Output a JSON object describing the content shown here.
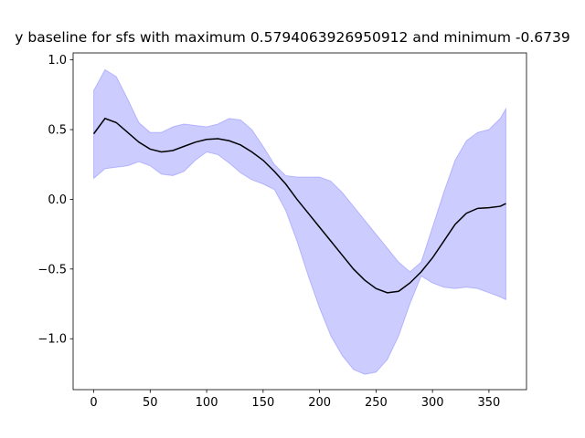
{
  "chart_data": {
    "type": "line",
    "title": "y baseline for sfs with maximum 0.5794063926950912 and minimum -0.6739",
    "x": [
      0,
      10,
      20,
      30,
      40,
      50,
      60,
      70,
      80,
      90,
      100,
      110,
      120,
      130,
      140,
      150,
      160,
      170,
      180,
      190,
      200,
      210,
      220,
      230,
      240,
      250,
      260,
      270,
      280,
      290,
      300,
      310,
      320,
      330,
      340,
      350,
      360,
      365
    ],
    "series": [
      {
        "color": "#000000",
        "values": [
          0.47,
          0.58,
          0.55,
          0.48,
          0.41,
          0.36,
          0.34,
          0.35,
          0.38,
          0.41,
          0.43,
          0.435,
          0.42,
          0.39,
          0.34,
          0.28,
          0.2,
          0.11,
          0.0,
          -0.1,
          -0.2,
          -0.3,
          -0.4,
          -0.5,
          -0.58,
          -0.64,
          -0.67,
          -0.66,
          -0.6,
          -0.52,
          -0.42,
          -0.3,
          -0.18,
          -0.1,
          -0.065,
          -0.06,
          -0.05,
          -0.03
        ]
      }
    ],
    "band": {
      "color": "#0000ff",
      "upper": [
        0.78,
        0.93,
        0.88,
        0.72,
        0.55,
        0.48,
        0.48,
        0.52,
        0.54,
        0.53,
        0.52,
        0.54,
        0.58,
        0.57,
        0.5,
        0.38,
        0.25,
        0.17,
        0.16,
        0.16,
        0.16,
        0.13,
        0.05,
        -0.05,
        -0.15,
        -0.25,
        -0.35,
        -0.45,
        -0.52,
        -0.45,
        -0.2,
        0.05,
        0.28,
        0.42,
        0.48,
        0.5,
        0.58,
        0.65
      ],
      "lower": [
        0.15,
        0.22,
        0.23,
        0.24,
        0.27,
        0.24,
        0.18,
        0.17,
        0.2,
        0.28,
        0.34,
        0.32,
        0.26,
        0.19,
        0.14,
        0.11,
        0.07,
        -0.08,
        -0.3,
        -0.55,
        -0.78,
        -0.98,
        -1.12,
        -1.22,
        -1.255,
        -1.24,
        -1.15,
        -0.98,
        -0.75,
        -0.55,
        -0.6,
        -0.63,
        -0.64,
        -0.63,
        -0.64,
        -0.67,
        -0.7,
        -0.72
      ]
    },
    "xlim": [
      -18.25,
      383.25
    ],
    "xticks": [
      0,
      50,
      100,
      150,
      200,
      250,
      300,
      350
    ],
    "ylim": [
      -1.365,
      1.05
    ],
    "yticks": [
      {
        "value": -1.0,
        "label": "−1.0"
      },
      {
        "value": -0.5,
        "label": "−0.5"
      },
      {
        "value": 0,
        "label": "0.0"
      },
      0.5,
      {
        "value": 1.0,
        "label": "1.0"
      }
    ],
    "grid": false
  }
}
